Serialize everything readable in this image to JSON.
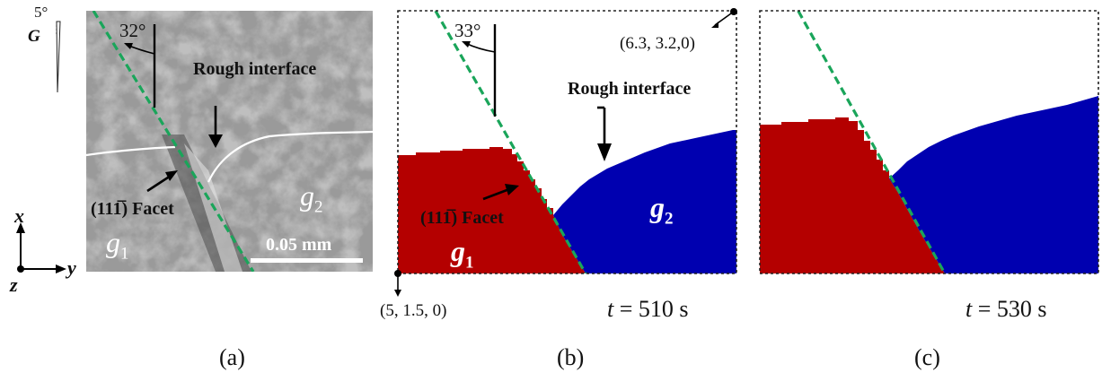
{
  "figure": {
    "panel_a": {
      "angle_label": "32°",
      "gradient_angle": "5°",
      "gradient_symbol": "G",
      "rough_interface_label": "Rough interface",
      "facet_label": "(111̅) Facet",
      "grain1_label": "g",
      "grain1_sub": "1",
      "grain2_label": "g",
      "grain2_sub": "2",
      "scale_bar_label": "0.05 mm",
      "axis_x": "x",
      "axis_y": "y",
      "axis_z": "z",
      "caption": "(a)"
    },
    "panel_b": {
      "angle_label": "33°",
      "corner_top_right": "(6.3, 3.2,0)",
      "corner_bottom_left": "(5, 1.5, 0)",
      "rough_interface_label": "Rough interface",
      "facet_label": "(111̅) Facet",
      "grain1_label": "g",
      "grain1_sub": "1",
      "grain2_label": "g",
      "grain2_sub": "2",
      "time_var": "t",
      "time_value": "= 510 s",
      "caption": "(b)"
    },
    "panel_c": {
      "time_var": "t",
      "time_value": "= 530 s",
      "caption": "(c)"
    },
    "colors": {
      "grain1_red": "#b40000",
      "grain2_blue": "#0000b0",
      "facet_line_green": "#1aa55a"
    }
  }
}
